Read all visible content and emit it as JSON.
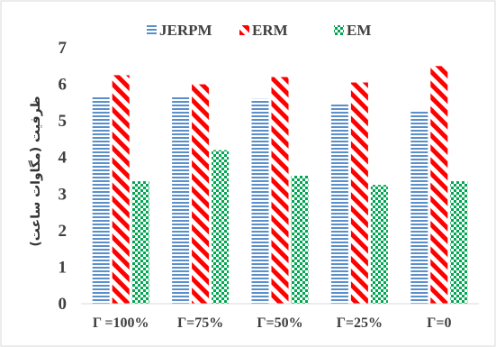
{
  "chart_data": {
    "type": "bar",
    "categories": [
      "Γ =100%",
      "Γ=75%",
      "Γ=50%",
      "Γ=25%",
      "Γ=0"
    ],
    "series": [
      {
        "name": "JERPM",
        "values": [
          5.65,
          5.65,
          5.6,
          5.45,
          5.3
        ],
        "color": "#5B8FC9",
        "pattern": "horizontal-stripes"
      },
      {
        "name": "ERM",
        "values": [
          6.25,
          6.0,
          6.2,
          6.05,
          6.5
        ],
        "color": "#FF0000",
        "pattern": "diagonal-stripes"
      },
      {
        "name": "EM",
        "values": [
          3.35,
          4.2,
          3.5,
          3.25,
          3.35
        ],
        "color": "#00A651",
        "pattern": "checkerboard"
      }
    ],
    "title": "",
    "xlabel": "",
    "ylabel": "ظرفیت (مگاوات ساعت)",
    "ylim": [
      0,
      7
    ],
    "yticks": [
      "0",
      "1",
      "2",
      "3",
      "4",
      "5",
      "6",
      "7"
    ],
    "grid": false,
    "legend_position": "top"
  }
}
